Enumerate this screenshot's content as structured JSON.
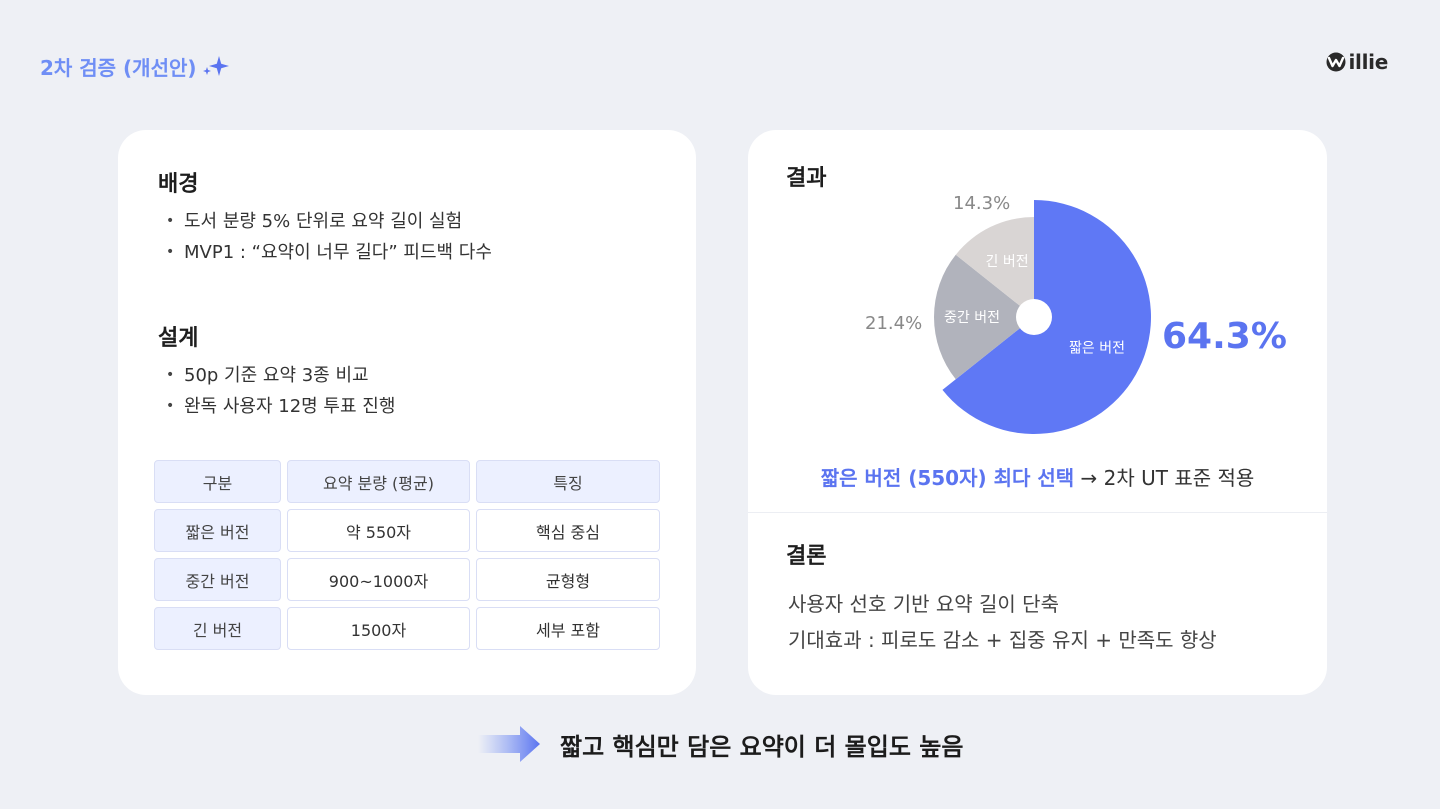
{
  "header": {
    "title": "2차 검증 (개선안)",
    "logo_text": "illie",
    "accent_color": "#6f8ef5"
  },
  "left_card": {
    "background": {
      "heading": "배경",
      "bullets": [
        "도서 분량 5% 단위로 요약 길이 실험",
        "MVP1 : “요약이 너무 길다” 피드백 다수"
      ]
    },
    "design": {
      "heading": "설계",
      "bullets": [
        "50p 기준 요약 3종 비교",
        "완독 사용자 12명 투표 진행"
      ]
    },
    "table": {
      "headers": [
        "구분",
        "요약 분량 (평균)",
        "특징"
      ],
      "rows": [
        [
          "짧은 버전",
          "약 550자",
          "핵심 중심"
        ],
        [
          "중간 버전",
          "900~1000자",
          "균형형"
        ],
        [
          "긴 버전",
          "1500자",
          "세부 포함"
        ]
      ]
    }
  },
  "right_card": {
    "result_heading": "결과",
    "result_line_highlight": "짧은 버전 (550자) 최다 선택",
    "result_line_rest": " → 2차 UT 표준 적용",
    "conclusion_heading": "결론",
    "conclusion_lines": [
      "사용자 선호 기반 요약 길이 단축",
      "기대효과 : 피로도 감소 + 집중 유지 + 만족도 향상"
    ]
  },
  "chart_data": {
    "type": "pie",
    "series": [
      {
        "name": "짧은 버전",
        "value": 64.3,
        "label": "64.3%",
        "color": "#5f78f5"
      },
      {
        "name": "중간 버전",
        "value": 21.4,
        "label": "21.4%",
        "color": "#b1b3bc"
      },
      {
        "name": "긴 버전",
        "value": 14.3,
        "label": "14.3%",
        "color": "#d9d5d4"
      }
    ]
  },
  "footer": {
    "summary": "짧고 핵심만 담은 요약이 더 몰입도 높음"
  }
}
